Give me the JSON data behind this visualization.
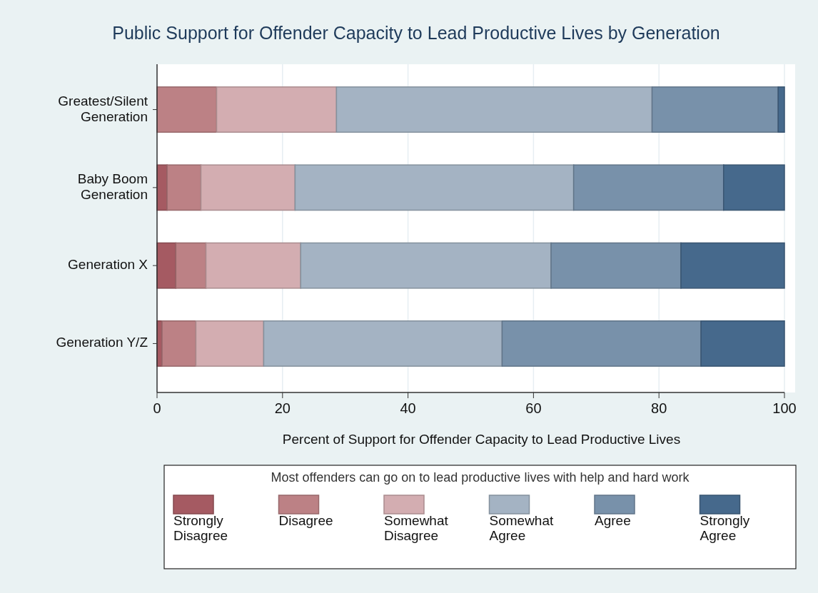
{
  "chart_data": {
    "type": "bar",
    "orientation": "horizontal",
    "stacked": true,
    "title": "Public Support for Offender Capacity to Lead Productive Lives by Generation",
    "xlabel": "Percent of Support for Offender Capacity to Lead Productive Lives",
    "legend_title": "Most offenders can go on to lead productive lives with help and hard work",
    "legend": "bottom",
    "grid": "x",
    "xlim": [
      0,
      100
    ],
    "xticks": [
      0,
      20,
      40,
      60,
      80,
      100
    ],
    "categories": [
      "Greatest/Silent\nGeneration",
      "Baby Boom\nGeneration",
      "Generation X",
      "Generation Y/Z"
    ],
    "series": [
      {
        "name": "Strongly\nDisagree",
        "color": "#a55a62",
        "values": [
          0,
          1.6,
          3.0,
          0.8
        ]
      },
      {
        "name": "Disagree",
        "color": "#bc8185",
        "values": [
          9.5,
          5.4,
          4.8,
          5.4
        ]
      },
      {
        "name": "Somewhat\nDisagree",
        "color": "#d3adb1",
        "values": [
          19.1,
          15.0,
          15.1,
          10.8
        ]
      },
      {
        "name": "Somewhat\nAgree",
        "color": "#a4b3c3",
        "values": [
          50.3,
          44.4,
          39.9,
          38.0
        ]
      },
      {
        "name": "Agree",
        "color": "#7891aa",
        "values": [
          20.1,
          23.9,
          20.7,
          31.7
        ]
      },
      {
        "name": "Strongly\nAgree",
        "color": "#46698c",
        "values": [
          1.0,
          9.7,
          16.5,
          13.3
        ]
      }
    ]
  }
}
